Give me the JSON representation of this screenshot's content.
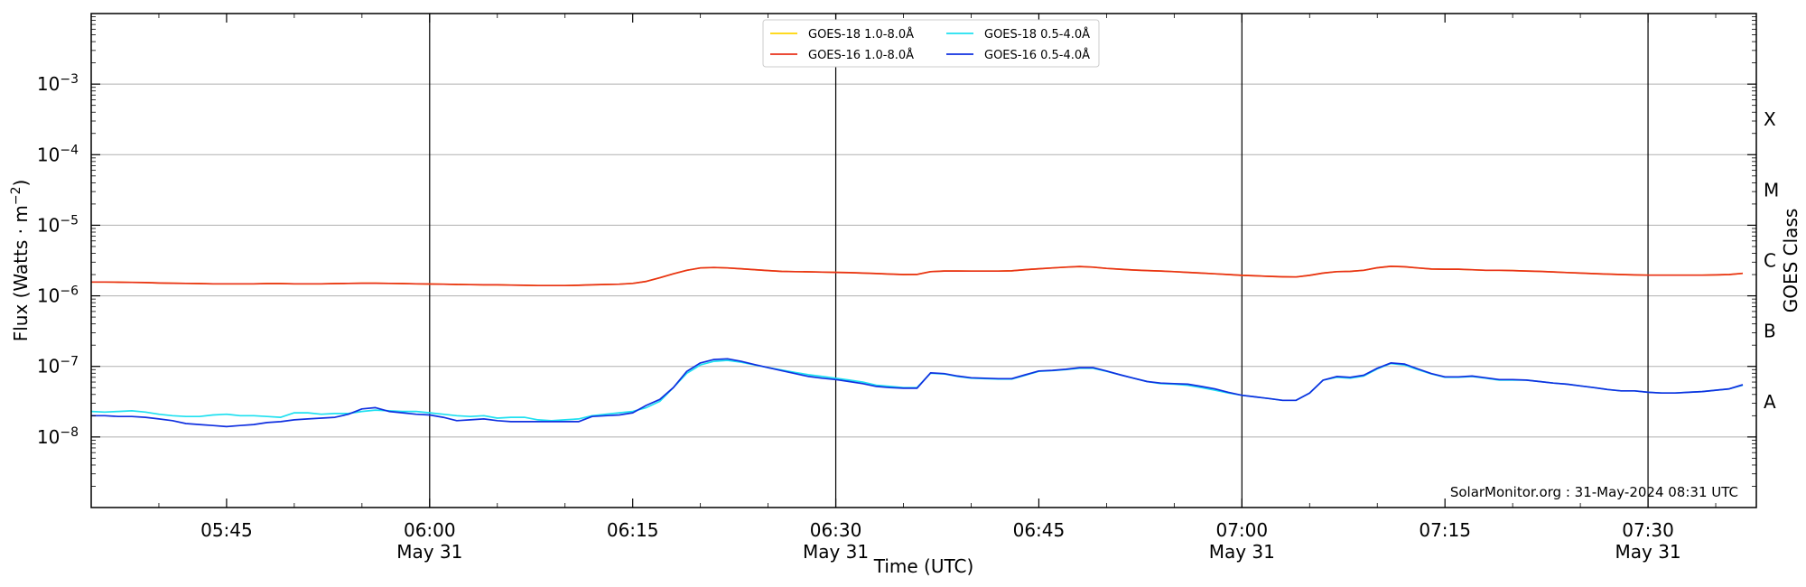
{
  "chart_data": {
    "type": "line",
    "xlabel": "Time (UTC)",
    "ylabel_main": "Flux (Watts · m",
    "ylabel_exp": "−2",
    "ylabel_close": ")",
    "right_label": "GOES Class",
    "credit": "SolarMonitor.org : 31-May-2024 08:31 UTC",
    "log_y": true,
    "ylim": [
      1e-09,
      0.01
    ],
    "xlim_minutes": [
      335,
      458
    ],
    "grid": "horizontal",
    "legend_placement": "top-center",
    "y_ticks": [
      {
        "value": 1e-08,
        "base": "10",
        "exp": "−8"
      },
      {
        "value": 1e-07,
        "base": "10",
        "exp": "−7"
      },
      {
        "value": 1e-06,
        "base": "10",
        "exp": "−6"
      },
      {
        "value": 1e-05,
        "base": "10",
        "exp": "−5"
      },
      {
        "value": 0.0001,
        "base": "10",
        "exp": "−4"
      },
      {
        "value": 0.001,
        "base": "10",
        "exp": "−3"
      }
    ],
    "x_ticks": [
      {
        "minute": 345,
        "label": "05:45",
        "date": ""
      },
      {
        "minute": 360,
        "label": "06:00",
        "date": "May 31"
      },
      {
        "minute": 375,
        "label": "06:15",
        "date": ""
      },
      {
        "minute": 390,
        "label": "06:30",
        "date": "May 31"
      },
      {
        "minute": 405,
        "label": "06:45",
        "date": ""
      },
      {
        "minute": 420,
        "label": "07:00",
        "date": "May 31"
      },
      {
        "minute": 435,
        "label": "07:15",
        "date": ""
      },
      {
        "minute": 450,
        "label": "07:30",
        "date": "May 31"
      }
    ],
    "vlines_minutes": [
      360,
      390,
      420,
      450
    ],
    "class_labels": [
      {
        "label": "X",
        "value": 0.000316
      },
      {
        "label": "M",
        "value": 3.16e-05
      },
      {
        "label": "C",
        "value": 3.16e-06
      },
      {
        "label": "B",
        "value": 3.16e-07
      },
      {
        "label": "A",
        "value": 3.16e-08
      }
    ],
    "x": [
      335,
      336,
      337,
      338,
      339,
      340,
      341,
      342,
      343,
      344,
      345,
      346,
      347,
      348,
      349,
      350,
      351,
      352,
      353,
      354,
      355,
      356,
      357,
      358,
      359,
      360,
      361,
      362,
      363,
      364,
      365,
      366,
      367,
      368,
      369,
      370,
      371,
      372,
      373,
      374,
      375,
      376,
      377,
      378,
      379,
      380,
      381,
      382,
      383,
      384,
      385,
      386,
      387,
      388,
      389,
      390,
      391,
      392,
      393,
      394,
      395,
      396,
      397,
      398,
      399,
      400,
      401,
      402,
      403,
      404,
      405,
      406,
      407,
      408,
      409,
      410,
      411,
      412,
      413,
      414,
      415,
      416,
      417,
      418,
      419,
      420,
      421,
      422,
      423,
      424,
      425,
      426,
      427,
      428,
      429,
      430,
      431,
      432,
      433,
      434,
      435,
      436,
      437,
      438,
      439,
      440,
      441,
      442,
      443,
      444,
      445,
      446,
      447,
      448,
      449,
      450,
      451,
      452,
      453,
      454,
      455,
      456,
      457
    ],
    "series": [
      {
        "name": "GOES-18 1.0-8.0Å",
        "color": "#ffd400",
        "values": [
          1.57e-06,
          1.57e-06,
          1.56e-06,
          1.55e-06,
          1.54e-06,
          1.52e-06,
          1.51e-06,
          1.5e-06,
          1.49e-06,
          1.48e-06,
          1.48e-06,
          1.48e-06,
          1.48e-06,
          1.49e-06,
          1.49e-06,
          1.48e-06,
          1.48e-06,
          1.48e-06,
          1.49e-06,
          1.5e-06,
          1.51e-06,
          1.51e-06,
          1.5e-06,
          1.49e-06,
          1.48e-06,
          1.47e-06,
          1.46e-06,
          1.45e-06,
          1.44e-06,
          1.43e-06,
          1.43e-06,
          1.42e-06,
          1.41e-06,
          1.4e-06,
          1.4e-06,
          1.4e-06,
          1.41e-06,
          1.43e-06,
          1.45e-06,
          1.46e-06,
          1.5e-06,
          1.6e-06,
          1.8e-06,
          2.05e-06,
          2.3e-06,
          2.48e-06,
          2.52e-06,
          2.48e-06,
          2.42e-06,
          2.35e-06,
          2.28e-06,
          2.22e-06,
          2.2e-06,
          2.19e-06,
          2.17e-06,
          2.15e-06,
          2.13e-06,
          2.1e-06,
          2.07e-06,
          2.03e-06,
          2e-06,
          2.01e-06,
          2.2e-06,
          2.25e-06,
          2.25e-06,
          2.24e-06,
          2.24e-06,
          2.24e-06,
          2.26e-06,
          2.35e-06,
          2.42e-06,
          2.48e-06,
          2.55e-06,
          2.6e-06,
          2.55e-06,
          2.45e-06,
          2.38e-06,
          2.32e-06,
          2.28e-06,
          2.25e-06,
          2.2e-06,
          2.15e-06,
          2.1e-06,
          2.05e-06,
          2e-06,
          1.95e-06,
          1.92e-06,
          1.89e-06,
          1.86e-06,
          1.85e-06,
          1.95e-06,
          2.1e-06,
          2.2e-06,
          2.22e-06,
          2.3e-06,
          2.5e-06,
          2.62e-06,
          2.58e-06,
          2.48e-06,
          2.4e-06,
          2.38e-06,
          2.38e-06,
          2.34e-06,
          2.3e-06,
          2.3e-06,
          2.28e-06,
          2.25e-06,
          2.22e-06,
          2.18e-06,
          2.14e-06,
          2.1e-06,
          2.06e-06,
          2.03e-06,
          2e-06,
          1.98e-06,
          1.96e-06,
          1.96e-06,
          1.96e-06,
          1.96e-06,
          1.96e-06,
          1.98e-06,
          2e-06,
          2.08e-06
        ]
      },
      {
        "name": "GOES-16 1.0-8.0Å",
        "color": "#e8301a",
        "values": [
          1.57e-06,
          1.57e-06,
          1.56e-06,
          1.55e-06,
          1.54e-06,
          1.52e-06,
          1.51e-06,
          1.5e-06,
          1.49e-06,
          1.48e-06,
          1.48e-06,
          1.48e-06,
          1.48e-06,
          1.49e-06,
          1.49e-06,
          1.48e-06,
          1.48e-06,
          1.48e-06,
          1.49e-06,
          1.5e-06,
          1.51e-06,
          1.51e-06,
          1.5e-06,
          1.49e-06,
          1.48e-06,
          1.47e-06,
          1.46e-06,
          1.45e-06,
          1.44e-06,
          1.43e-06,
          1.43e-06,
          1.42e-06,
          1.41e-06,
          1.4e-06,
          1.4e-06,
          1.4e-06,
          1.41e-06,
          1.43e-06,
          1.45e-06,
          1.46e-06,
          1.5e-06,
          1.6e-06,
          1.8e-06,
          2.05e-06,
          2.3e-06,
          2.48e-06,
          2.52e-06,
          2.48e-06,
          2.42e-06,
          2.35e-06,
          2.28e-06,
          2.22e-06,
          2.2e-06,
          2.19e-06,
          2.17e-06,
          2.15e-06,
          2.13e-06,
          2.1e-06,
          2.07e-06,
          2.03e-06,
          2e-06,
          2.01e-06,
          2.2e-06,
          2.25e-06,
          2.25e-06,
          2.24e-06,
          2.24e-06,
          2.24e-06,
          2.26e-06,
          2.35e-06,
          2.42e-06,
          2.48e-06,
          2.55e-06,
          2.6e-06,
          2.55e-06,
          2.45e-06,
          2.38e-06,
          2.32e-06,
          2.28e-06,
          2.25e-06,
          2.2e-06,
          2.15e-06,
          2.1e-06,
          2.05e-06,
          2e-06,
          1.95e-06,
          1.92e-06,
          1.89e-06,
          1.86e-06,
          1.85e-06,
          1.95e-06,
          2.1e-06,
          2.2e-06,
          2.22e-06,
          2.3e-06,
          2.5e-06,
          2.62e-06,
          2.58e-06,
          2.48e-06,
          2.4e-06,
          2.38e-06,
          2.38e-06,
          2.34e-06,
          2.3e-06,
          2.3e-06,
          2.28e-06,
          2.25e-06,
          2.22e-06,
          2.18e-06,
          2.14e-06,
          2.1e-06,
          2.06e-06,
          2.03e-06,
          2e-06,
          1.98e-06,
          1.96e-06,
          1.96e-06,
          1.96e-06,
          1.96e-06,
          1.96e-06,
          1.98e-06,
          2e-06,
          2.08e-06
        ]
      },
      {
        "name": "GOES-18 0.5-4.0Å",
        "color": "#1ee0f0",
        "values": [
          2.3e-08,
          2.25e-08,
          2.3e-08,
          2.35e-08,
          2.25e-08,
          2.1e-08,
          2e-08,
          1.95e-08,
          1.95e-08,
          2.05e-08,
          2.1e-08,
          2e-08,
          2e-08,
          1.95e-08,
          1.9e-08,
          2.2e-08,
          2.2e-08,
          2.1e-08,
          2.15e-08,
          2.15e-08,
          2.3e-08,
          2.4e-08,
          2.35e-08,
          2.3e-08,
          2.3e-08,
          2.2e-08,
          2.1e-08,
          2e-08,
          1.95e-08,
          2e-08,
          1.85e-08,
          1.9e-08,
          1.9e-08,
          1.75e-08,
          1.7e-08,
          1.75e-08,
          1.8e-08,
          2e-08,
          2.1e-08,
          2.2e-08,
          2.3e-08,
          2.6e-08,
          3.2e-08,
          5e-08,
          8e-08,
          1.05e-07,
          1.18e-07,
          1.22e-07,
          1.15e-07,
          1.05e-07,
          9.6e-08,
          8.9e-08,
          8.2e-08,
          7.6e-08,
          7.2e-08,
          6.8e-08,
          6.4e-08,
          6e-08,
          5.4e-08,
          5.2e-08,
          5e-08,
          5e-08,
          8e-08,
          7.8e-08,
          7.2e-08,
          6.8e-08,
          6.7e-08,
          6.6e-08,
          6.6e-08,
          7.5e-08,
          8.5e-08,
          8.7e-08,
          9e-08,
          9.4e-08,
          9.4e-08,
          8.5e-08,
          7.6e-08,
          6.8e-08,
          6.1e-08,
          5.7e-08,
          5.6e-08,
          5.4e-08,
          5e-08,
          4.6e-08,
          4.2e-08,
          3.9e-08,
          3.7e-08,
          3.5e-08,
          3.3e-08,
          3.3e-08,
          4.2e-08,
          6.4e-08,
          7e-08,
          6.8e-08,
          7.3e-08,
          9.2e-08,
          1.1e-07,
          1.05e-07,
          9e-08,
          7.8e-08,
          7e-08,
          7e-08,
          7.2e-08,
          6.8e-08,
          6.4e-08,
          6.4e-08,
          6.4e-08,
          6.1e-08,
          5.8e-08,
          5.6e-08,
          5.3e-08,
          5e-08,
          4.7e-08,
          4.5e-08,
          4.5e-08,
          4.3e-08,
          4.2e-08,
          4.2e-08,
          4.3e-08,
          4.4e-08,
          4.6e-08,
          4.8e-08,
          5.4e-08
        ]
      },
      {
        "name": "GOES-16 0.5-4.0Å",
        "color": "#1030e0",
        "values": [
          2e-08,
          2e-08,
          1.95e-08,
          1.95e-08,
          1.9e-08,
          1.8e-08,
          1.7e-08,
          1.55e-08,
          1.5e-08,
          1.45e-08,
          1.4e-08,
          1.45e-08,
          1.5e-08,
          1.6e-08,
          1.65e-08,
          1.75e-08,
          1.8e-08,
          1.85e-08,
          1.9e-08,
          2.1e-08,
          2.5e-08,
          2.6e-08,
          2.3e-08,
          2.2e-08,
          2.1e-08,
          2.05e-08,
          1.9e-08,
          1.7e-08,
          1.75e-08,
          1.8e-08,
          1.7e-08,
          1.65e-08,
          1.65e-08,
          1.65e-08,
          1.65e-08,
          1.65e-08,
          1.65e-08,
          1.95e-08,
          2e-08,
          2.05e-08,
          2.2e-08,
          2.8e-08,
          3.4e-08,
          5e-08,
          8.5e-08,
          1.12e-07,
          1.25e-07,
          1.28e-07,
          1.18e-07,
          1.06e-07,
          9.6e-08,
          8.7e-08,
          7.9e-08,
          7.2e-08,
          6.8e-08,
          6.5e-08,
          6.1e-08,
          5.7e-08,
          5.2e-08,
          5e-08,
          4.9e-08,
          4.9e-08,
          8.1e-08,
          7.9e-08,
          7.3e-08,
          6.9e-08,
          6.8e-08,
          6.7e-08,
          6.7e-08,
          7.6e-08,
          8.6e-08,
          8.8e-08,
          9.1e-08,
          9.6e-08,
          9.6e-08,
          8.6e-08,
          7.6e-08,
          6.8e-08,
          6.1e-08,
          5.8e-08,
          5.7e-08,
          5.6e-08,
          5.2e-08,
          4.8e-08,
          4.3e-08,
          3.9e-08,
          3.7e-08,
          3.5e-08,
          3.3e-08,
          3.3e-08,
          4.2e-08,
          6.4e-08,
          7.2e-08,
          7e-08,
          7.5e-08,
          9.4e-08,
          1.12e-07,
          1.08e-07,
          9.2e-08,
          7.9e-08,
          7.1e-08,
          7.1e-08,
          7.3e-08,
          6.9e-08,
          6.5e-08,
          6.5e-08,
          6.4e-08,
          6.1e-08,
          5.8e-08,
          5.6e-08,
          5.3e-08,
          5e-08,
          4.7e-08,
          4.5e-08,
          4.5e-08,
          4.3e-08,
          4.2e-08,
          4.2e-08,
          4.3e-08,
          4.4e-08,
          4.6e-08,
          4.8e-08,
          5.5e-08
        ]
      }
    ]
  }
}
